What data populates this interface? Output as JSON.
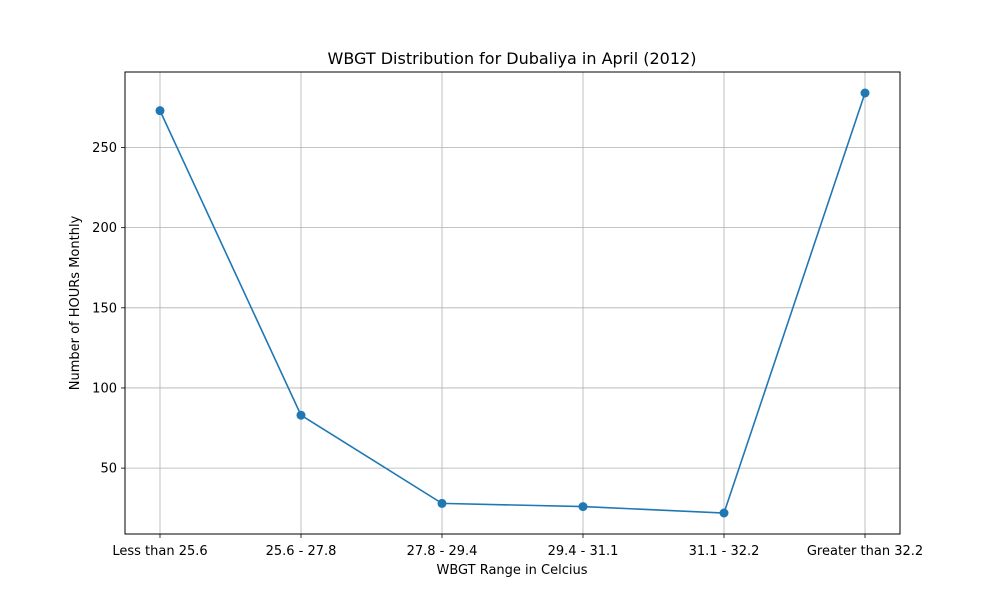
{
  "chart_data": {
    "type": "line",
    "title": "WBGT Distribution for Dubaliya in April (2012)",
    "xlabel": "WBGT Range in Celcius",
    "ylabel": "Number of HOURs Monthly",
    "categories": [
      "Less than 25.6",
      "25.6 - 27.8",
      "27.8 - 29.4",
      "29.4 - 31.1",
      "31.1 - 32.2",
      "Greater than 32.2"
    ],
    "series": [
      {
        "values": [
          273,
          83,
          28,
          26,
          22,
          284
        ]
      }
    ],
    "ylim": [
      8.9,
      297.1
    ],
    "yticks": [
      50,
      100,
      150,
      200,
      250
    ],
    "grid": true,
    "color": "#1f77b4"
  }
}
